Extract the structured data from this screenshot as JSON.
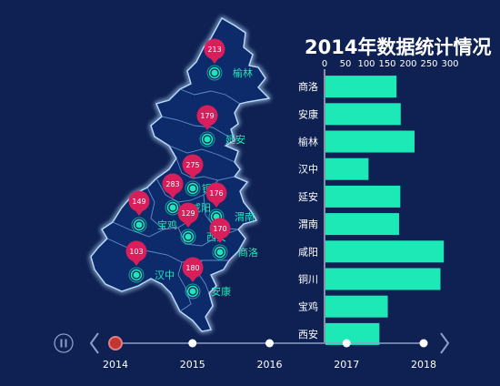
{
  "chart_data": {
    "title": "2014年数据统计情况",
    "map": {
      "cities": [
        {
          "name": "榆林",
          "value": 213
        },
        {
          "name": "延安",
          "value": 179
        },
        {
          "name": "铜川",
          "value": 275
        },
        {
          "name": "咸阳",
          "value": 283
        },
        {
          "name": "渭南",
          "value": 176
        },
        {
          "name": "宝鸡",
          "value": 149
        },
        {
          "name": "西安",
          "value": 129
        },
        {
          "name": "商洛",
          "value": 170
        },
        {
          "name": "汉中",
          "value": 103
        },
        {
          "name": "安康",
          "value": 180
        }
      ]
    },
    "bar": {
      "type": "bar",
      "orientation": "horizontal",
      "x_ticks": [
        "0",
        "50",
        "100",
        "150",
        "200",
        "250",
        "300"
      ],
      "xlim": [
        0,
        300
      ],
      "categories": [
        "商洛",
        "安康",
        "榆林",
        "汉中",
        "延安",
        "渭南",
        "咸阳",
        "铜川",
        "宝鸡",
        "西安"
      ],
      "values": [
        170,
        180,
        213,
        103,
        179,
        176,
        283,
        275,
        149,
        129
      ],
      "bar_color": "#1de9b6"
    },
    "timeline": {
      "years": [
        "2014",
        "2015",
        "2016",
        "2017",
        "2018"
      ],
      "current": "2014"
    },
    "colors": {
      "background": "#0e2152",
      "pin": "#d81e5b",
      "province_fill": "#102a6a",
      "border_glow": "#b9dcff",
      "dot": "#1de9b6"
    }
  }
}
